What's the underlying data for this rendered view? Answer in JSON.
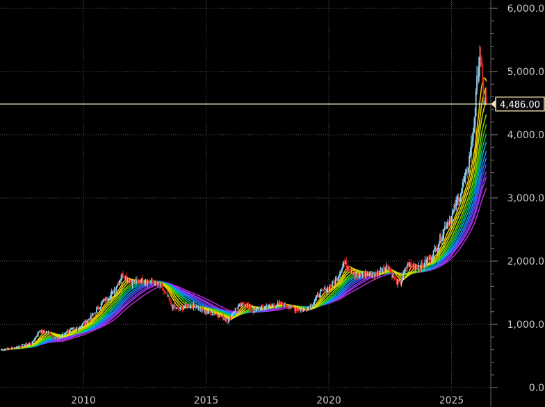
{
  "chart_data": {
    "type": "line",
    "chart_style": "candlestick with rainbow moving-average ribbon",
    "x_axis": {
      "ticks": [
        {
          "year": 2010,
          "label": "2010"
        },
        {
          "year": 2015,
          "label": "2015"
        },
        {
          "year": 2020,
          "label": "2020"
        },
        {
          "year": 2025,
          "label": "2025"
        }
      ],
      "range": [
        2006.6,
        2026.6
      ]
    },
    "y_axis": {
      "position": "right",
      "range": [
        0,
        6000
      ],
      "ticks": [
        {
          "value": 0,
          "label": "0.0"
        },
        {
          "value": 1000,
          "label": "1,000.0"
        },
        {
          "value": 2000,
          "label": "2,000.0"
        },
        {
          "value": 3000,
          "label": "3,000.0"
        },
        {
          "value": 4000,
          "label": "4,000.0"
        },
        {
          "value": 5000,
          "label": "5,000.0"
        },
        {
          "value": 6000,
          "label": "6,000.0"
        }
      ],
      "minor_step": 200
    },
    "grid": "dotted",
    "current_price": {
      "value": 4486,
      "label": "4,486.00"
    },
    "price_series": {
      "x": [
        2006.65,
        2007.0,
        2007.5,
        2007.9,
        2008.2,
        2008.6,
        2008.9,
        2009.3,
        2009.8,
        2010.3,
        2010.8,
        2011.2,
        2011.6,
        2011.7,
        2012.0,
        2012.4,
        2012.8,
        2013.1,
        2013.4,
        2013.6,
        2013.9,
        2014.2,
        2014.6,
        2014.9,
        2015.3,
        2015.6,
        2015.9,
        2016.2,
        2016.6,
        2016.9,
        2017.3,
        2017.7,
        2018.1,
        2018.6,
        2018.9,
        2019.3,
        2019.6,
        2020.0,
        2020.3,
        2020.6,
        2020.9,
        2021.2,
        2021.5,
        2021.9,
        2022.2,
        2022.4,
        2022.7,
        2022.9,
        2023.2,
        2023.5,
        2023.8,
        2024.0,
        2024.3,
        2024.5,
        2024.8,
        2025.0,
        2025.3,
        2025.6,
        2025.8,
        2025.95,
        2026.05,
        2026.15,
        2026.3,
        2026.45
      ],
      "y": [
        600,
        620,
        660,
        700,
        900,
        860,
        760,
        880,
        950,
        1110,
        1360,
        1500,
        1800,
        1760,
        1650,
        1700,
        1660,
        1620,
        1450,
        1280,
        1230,
        1300,
        1290,
        1200,
        1180,
        1120,
        1060,
        1250,
        1340,
        1200,
        1270,
        1300,
        1320,
        1250,
        1220,
        1310,
        1480,
        1590,
        1700,
        1980,
        1860,
        1750,
        1800,
        1780,
        1900,
        1920,
        1700,
        1640,
        1950,
        1930,
        1920,
        2000,
        2150,
        2320,
        2600,
        2700,
        3020,
        3350,
        3800,
        4300,
        4900,
        5300,
        4600,
        4486
      ]
    },
    "ribbon": {
      "lags": [
        2,
        3,
        4,
        5,
        6,
        7,
        8,
        9,
        10,
        11,
        12,
        13,
        15
      ],
      "colors": [
        "#ffd200",
        "#f0e000",
        "#c8e000",
        "#8ed600",
        "#3ec800",
        "#00c27a",
        "#00b8c8",
        "#009cff",
        "#3c6eff",
        "#5a4cff",
        "#8a3cff",
        "#b02cf5",
        "#b82cd8"
      ]
    }
  }
}
